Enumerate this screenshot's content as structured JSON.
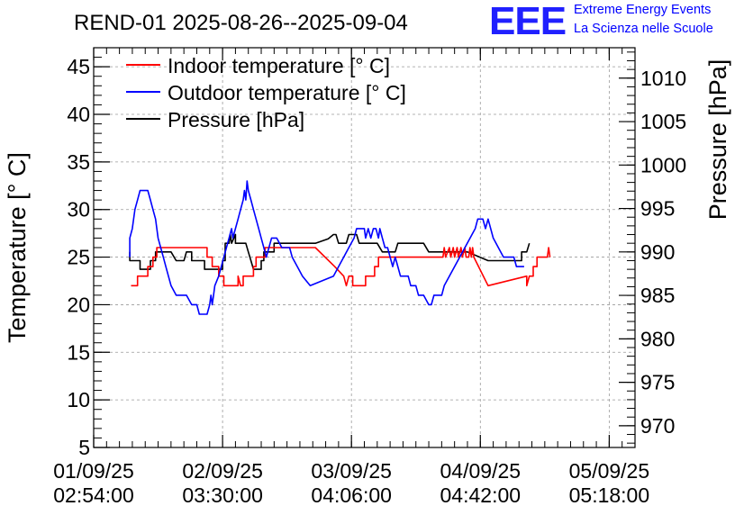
{
  "brand": {
    "logo": "EEE",
    "line1": "Extreme Energy Events",
    "line2": "La Scienza nelle Scuole"
  },
  "chart_data": {
    "type": "line",
    "title": "REND-01 2025-08-26--2025-09-04",
    "ylabel": "Temperature [° C]",
    "y2label": "Pressure [hPa]",
    "ylim": [
      5,
      47
    ],
    "y2lim": [
      967.5,
      1013.5
    ],
    "yticks": [
      5,
      10,
      15,
      20,
      25,
      30,
      35,
      40,
      45
    ],
    "y2ticks": [
      970,
      975,
      980,
      985,
      990,
      995,
      1000,
      1005,
      1010
    ],
    "xlim": [
      0,
      4.2
    ],
    "xunit": "hours since 01/09/25 02:54:00",
    "xticks": [
      {
        "x": 0,
        "line1": "01/09/25",
        "line2": "02:54:00"
      },
      {
        "x": 1,
        "line1": "02/09/25",
        "line2": "03:30:00"
      },
      {
        "x": 2,
        "line1": "03/09/25",
        "line2": "04:06:00"
      },
      {
        "x": 3,
        "line1": "04/09/25",
        "line2": "04:42:00"
      },
      {
        "x": 4,
        "line1": "05/09/25",
        "line2": "05:18:00"
      }
    ],
    "grid": true,
    "legend_position": "top-left",
    "series": [
      {
        "name": "Indoor temperature [° C]",
        "color": "#ff0000",
        "axis": "left",
        "points": [
          [
            0.29,
            22
          ],
          [
            0.34,
            22
          ],
          [
            0.34,
            23
          ],
          [
            0.42,
            23
          ],
          [
            0.42,
            24
          ],
          [
            0.46,
            24
          ],
          [
            0.46,
            25
          ],
          [
            0.49,
            25
          ],
          [
            0.49,
            26
          ],
          [
            0.88,
            26
          ],
          [
            0.88,
            25
          ],
          [
            0.92,
            25
          ],
          [
            0.92,
            24
          ],
          [
            0.97,
            24
          ],
          [
            0.97,
            23
          ],
          [
            1.01,
            23
          ],
          [
            1.01,
            22
          ],
          [
            1.12,
            22
          ],
          [
            1.12,
            23
          ],
          [
            1.14,
            22
          ],
          [
            1.16,
            22
          ],
          [
            1.16,
            23
          ],
          [
            1.24,
            23
          ],
          [
            1.24,
            24
          ],
          [
            1.26,
            24
          ],
          [
            1.26,
            25
          ],
          [
            1.33,
            25
          ],
          [
            1.33,
            26
          ],
          [
            1.57,
            26
          ],
          [
            1.61,
            26
          ],
          [
            1.72,
            26
          ],
          [
            1.87,
            24
          ],
          [
            1.94,
            23
          ],
          [
            1.96,
            22
          ],
          [
            1.98,
            23
          ],
          [
            2.01,
            23
          ],
          [
            2.01,
            22
          ],
          [
            2.11,
            22
          ],
          [
            2.11,
            23
          ],
          [
            2.18,
            23
          ],
          [
            2.18,
            24
          ],
          [
            2.21,
            24
          ],
          [
            2.21,
            25
          ],
          [
            2.71,
            25
          ],
          [
            2.72,
            26
          ],
          [
            2.73,
            25
          ],
          [
            2.76,
            26
          ],
          [
            2.77,
            25
          ],
          [
            2.79,
            26
          ],
          [
            2.8,
            25
          ],
          [
            2.82,
            26
          ],
          [
            2.83,
            25
          ],
          [
            2.85,
            26
          ],
          [
            2.86,
            25
          ],
          [
            2.88,
            26
          ],
          [
            2.89,
            25
          ],
          [
            2.91,
            25
          ],
          [
            2.92,
            26
          ],
          [
            2.93,
            25
          ],
          [
            2.94,
            26
          ],
          [
            2.95,
            25
          ],
          [
            3.06,
            22
          ],
          [
            3.36,
            23
          ],
          [
            3.36,
            22
          ],
          [
            3.38,
            23
          ],
          [
            3.41,
            23
          ],
          [
            3.41,
            24
          ],
          [
            3.44,
            24
          ],
          [
            3.44,
            25
          ],
          [
            3.52,
            25
          ],
          [
            3.53,
            26
          ],
          [
            3.54,
            25
          ]
        ]
      },
      {
        "name": "Outdoor temperature [° C]",
        "color": "#0000ff",
        "axis": "left",
        "points": [
          [
            0.28,
            25
          ],
          [
            0.28,
            27
          ],
          [
            0.3,
            28
          ],
          [
            0.32,
            30
          ],
          [
            0.34,
            31
          ],
          [
            0.36,
            32
          ],
          [
            0.42,
            32
          ],
          [
            0.44,
            31
          ],
          [
            0.46,
            30
          ],
          [
            0.48,
            29
          ],
          [
            0.5,
            27
          ],
          [
            0.52,
            26
          ],
          [
            0.54,
            25
          ],
          [
            0.56,
            24
          ],
          [
            0.58,
            23
          ],
          [
            0.6,
            22
          ],
          [
            0.64,
            21
          ],
          [
            0.72,
            21
          ],
          [
            0.76,
            20
          ],
          [
            0.8,
            20
          ],
          [
            0.82,
            19
          ],
          [
            0.88,
            19
          ],
          [
            0.9,
            20
          ],
          [
            0.91,
            21
          ],
          [
            0.92,
            20
          ],
          [
            0.93,
            21
          ],
          [
            0.94,
            22
          ],
          [
            0.97,
            23
          ],
          [
            0.99,
            24
          ],
          [
            1.01,
            25
          ],
          [
            1.03,
            26
          ],
          [
            1.05,
            27
          ],
          [
            1.07,
            28
          ],
          [
            1.08,
            27
          ],
          [
            1.1,
            28
          ],
          [
            1.12,
            29
          ],
          [
            1.14,
            30
          ],
          [
            1.16,
            31
          ],
          [
            1.17,
            32
          ],
          [
            1.18,
            31
          ],
          [
            1.19,
            33
          ],
          [
            1.2,
            32
          ],
          [
            1.22,
            31
          ],
          [
            1.24,
            30
          ],
          [
            1.26,
            29
          ],
          [
            1.28,
            28
          ],
          [
            1.3,
            27
          ],
          [
            1.32,
            26
          ],
          [
            1.34,
            25
          ],
          [
            1.36,
            26
          ],
          [
            1.38,
            27
          ],
          [
            1.42,
            27
          ],
          [
            1.46,
            26
          ],
          [
            1.52,
            26
          ],
          [
            1.54,
            25
          ],
          [
            1.58,
            24
          ],
          [
            1.62,
            23
          ],
          [
            1.68,
            22
          ],
          [
            1.86,
            23
          ],
          [
            1.9,
            24
          ],
          [
            1.94,
            25
          ],
          [
            1.98,
            26
          ],
          [
            2.02,
            27
          ],
          [
            2.04,
            28
          ],
          [
            2.1,
            28
          ],
          [
            2.11,
            27
          ],
          [
            2.13,
            28
          ],
          [
            2.15,
            27
          ],
          [
            2.17,
            28
          ],
          [
            2.19,
            28
          ],
          [
            2.21,
            27
          ],
          [
            2.22,
            28
          ],
          [
            2.24,
            27
          ],
          [
            2.26,
            26
          ],
          [
            2.28,
            26
          ],
          [
            2.3,
            25
          ],
          [
            2.32,
            24
          ],
          [
            2.34,
            25
          ],
          [
            2.36,
            24
          ],
          [
            2.38,
            23
          ],
          [
            2.44,
            23
          ],
          [
            2.46,
            22
          ],
          [
            2.5,
            22
          ],
          [
            2.52,
            21
          ],
          [
            2.56,
            21
          ],
          [
            2.6,
            20
          ],
          [
            2.62,
            20
          ],
          [
            2.64,
            21
          ],
          [
            2.7,
            21
          ],
          [
            2.72,
            22
          ],
          [
            2.96,
            28
          ],
          [
            2.98,
            29
          ],
          [
            3.02,
            29
          ],
          [
            3.04,
            28
          ],
          [
            3.06,
            29
          ],
          [
            3.1,
            27
          ],
          [
            3.14,
            26
          ],
          [
            3.18,
            25
          ],
          [
            3.26,
            25
          ],
          [
            3.28,
            24
          ],
          [
            3.34,
            24
          ]
        ]
      },
      {
        "name": "Pressure [hPa]",
        "color": "#000000",
        "axis": "right",
        "points": [
          [
            0.28,
            990
          ],
          [
            0.28,
            989
          ],
          [
            0.36,
            989
          ],
          [
            0.36,
            988
          ],
          [
            0.44,
            988
          ],
          [
            0.44,
            989
          ],
          [
            0.48,
            989
          ],
          [
            0.48,
            990
          ],
          [
            0.54,
            990
          ],
          [
            0.6,
            990
          ],
          [
            0.64,
            989
          ],
          [
            0.7,
            989
          ],
          [
            0.72,
            990
          ],
          [
            0.76,
            990
          ],
          [
            0.76,
            989
          ],
          [
            0.86,
            989
          ],
          [
            0.86,
            988
          ],
          [
            1.0,
            988
          ],
          [
            1.0,
            989
          ],
          [
            1.02,
            989
          ],
          [
            1.02,
            991
          ],
          [
            1.05,
            991
          ],
          [
            1.06,
            992
          ],
          [
            1.07,
            991
          ],
          [
            1.1,
            992
          ],
          [
            1.1,
            991
          ],
          [
            1.18,
            991
          ],
          [
            1.2,
            990
          ],
          [
            1.22,
            989
          ],
          [
            1.24,
            988
          ],
          [
            1.3,
            988
          ],
          [
            1.3,
            989
          ],
          [
            1.32,
            989
          ],
          [
            1.32,
            990
          ],
          [
            1.4,
            990
          ],
          [
            1.4,
            991
          ],
          [
            1.72,
            991
          ],
          [
            1.82,
            991.5
          ],
          [
            1.86,
            992
          ],
          [
            1.88,
            992
          ],
          [
            1.9,
            991
          ],
          [
            1.96,
            991
          ],
          [
            1.98,
            992
          ],
          [
            2.04,
            992
          ],
          [
            2.06,
            991
          ],
          [
            2.2,
            991
          ],
          [
            2.24,
            990
          ],
          [
            2.34,
            990
          ],
          [
            2.36,
            991
          ],
          [
            2.56,
            991
          ],
          [
            2.6,
            990
          ],
          [
            2.9,
            990
          ],
          [
            3.06,
            989
          ],
          [
            3.32,
            989
          ],
          [
            3.32,
            990
          ],
          [
            3.36,
            990
          ],
          [
            3.38,
            991
          ]
        ]
      }
    ]
  }
}
